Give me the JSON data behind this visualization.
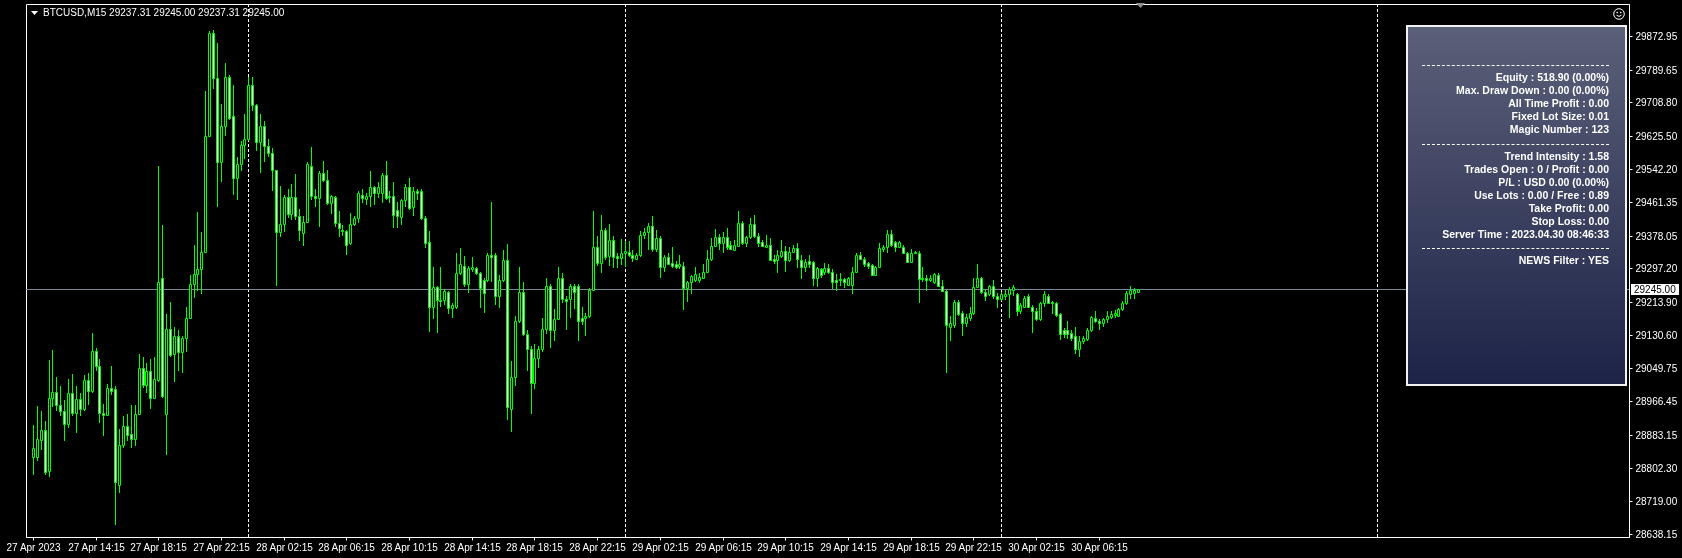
{
  "chart_data": {
    "type": "candlestick",
    "title": "BTCUSD,M15 29237.31 29245.00 29237.31 29245.00",
    "color": "#00ff00",
    "x": [
      "2023-04-27T10:15",
      "2023-04-27T10:30",
      "2023-04-27T10:45",
      "2023-04-27T11:00",
      "2023-04-27T11:15",
      "2023-04-27T11:30",
      "2023-04-27T11:45",
      "2023-04-27T12:00",
      "2023-04-27T12:15",
      "2023-04-27T12:30",
      "2023-04-27T12:45",
      "2023-04-27T13:00",
      "2023-04-27T13:15",
      "2023-04-27T13:30",
      "2023-04-27T13:45",
      "2023-04-27T14:00",
      "2023-04-27T14:15",
      "2023-04-27T14:30",
      "2023-04-27T14:45",
      "2023-04-27T15:00",
      "2023-04-27T15:15",
      "2023-04-27T15:30",
      "2023-04-27T15:45",
      "2023-04-27T16:00",
      "2023-04-27T16:15",
      "2023-04-27T16:30",
      "2023-04-27T16:45",
      "2023-04-27T17:00",
      "2023-04-27T17:15",
      "2023-04-27T17:30",
      "2023-04-27T17:45",
      "2023-04-27T18:00",
      "2023-04-27T18:15",
      "2023-04-27T18:30",
      "2023-04-27T18:45",
      "2023-04-27T19:00",
      "2023-04-27T19:15",
      "2023-04-27T19:30",
      "2023-04-27T19:45",
      "2023-04-27T20:00",
      "2023-04-27T20:15",
      "2023-04-27T20:30",
      "2023-04-27T20:45",
      "2023-04-27T21:00",
      "2023-04-27T21:15",
      "2023-04-27T21:30",
      "2023-04-27T21:45",
      "2023-04-27T22:00",
      "2023-04-27T22:15",
      "2023-04-27T22:30",
      "2023-04-27T22:45",
      "2023-04-27T23:00",
      "2023-04-27T23:15",
      "2023-04-27T23:30",
      "2023-04-27T23:45",
      "2023-04-28T00:00",
      "2023-04-28T00:15",
      "2023-04-28T00:30",
      "2023-04-28T00:45",
      "2023-04-28T01:00",
      "2023-04-28T01:15",
      "2023-04-28T01:30",
      "2023-04-28T01:45",
      "2023-04-28T02:00",
      "2023-04-28T02:15",
      "2023-04-28T02:30",
      "2023-04-28T02:45",
      "2023-04-28T03:00",
      "2023-04-28T03:15",
      "2023-04-28T03:30",
      "2023-04-28T03:45",
      "2023-04-28T04:00",
      "2023-04-28T04:15",
      "2023-04-28T04:30",
      "2023-04-28T04:45",
      "2023-04-28T05:00",
      "2023-04-28T05:15",
      "2023-04-28T05:30",
      "2023-04-28T05:45",
      "2023-04-28T06:00",
      "2023-04-28T06:15",
      "2023-04-28T06:30",
      "2023-04-28T06:45",
      "2023-04-28T07:00",
      "2023-04-28T07:15",
      "2023-04-28T07:30",
      "2023-04-28T07:45",
      "2023-04-28T08:00",
      "2023-04-28T08:15",
      "2023-04-28T08:30",
      "2023-04-28T08:45",
      "2023-04-28T09:00",
      "2023-04-28T09:15",
      "2023-04-28T09:30",
      "2023-04-28T09:45",
      "2023-04-28T10:00",
      "2023-04-28T10:15",
      "2023-04-28T10:30",
      "2023-04-28T10:45",
      "2023-04-28T11:00",
      "2023-04-28T11:15",
      "2023-04-28T11:30",
      "2023-04-28T11:45",
      "2023-04-28T12:00",
      "2023-04-28T12:15",
      "2023-04-28T12:30",
      "2023-04-28T12:45",
      "2023-04-28T13:00",
      "2023-04-28T13:15",
      "2023-04-28T13:30",
      "2023-04-28T13:45",
      "2023-04-28T14:00",
      "2023-04-28T14:15",
      "2023-04-28T14:30",
      "2023-04-28T14:45",
      "2023-04-28T15:00",
      "2023-04-28T15:15",
      "2023-04-28T15:30",
      "2023-04-28T15:45",
      "2023-04-28T16:00",
      "2023-04-28T16:15",
      "2023-04-28T16:30",
      "2023-04-28T16:45",
      "2023-04-28T17:00",
      "2023-04-28T17:15",
      "2023-04-28T17:30",
      "2023-04-28T17:45",
      "2023-04-28T18:00",
      "2023-04-28T18:15",
      "2023-04-28T18:30",
      "2023-04-28T18:45",
      "2023-04-28T19:00",
      "2023-04-28T19:15",
      "2023-04-28T19:30",
      "2023-04-28T19:45",
      "2023-04-28T20:00",
      "2023-04-28T20:15",
      "2023-04-28T20:30",
      "2023-04-28T20:45",
      "2023-04-28T21:00",
      "2023-04-28T21:15",
      "2023-04-28T21:30",
      "2023-04-28T21:45",
      "2023-04-28T22:00",
      "2023-04-28T22:15",
      "2023-04-28T22:30",
      "2023-04-28T22:45",
      "2023-04-28T23:00",
      "2023-04-28T23:15",
      "2023-04-28T23:30",
      "2023-04-28T23:45",
      "2023-04-29T00:00",
      "2023-04-29T00:15",
      "2023-04-29T00:30",
      "2023-04-29T00:45",
      "2023-04-29T01:00",
      "2023-04-29T01:15",
      "2023-04-29T01:30",
      "2023-04-29T01:45",
      "2023-04-29T02:00",
      "2023-04-29T02:15",
      "2023-04-29T02:30",
      "2023-04-29T02:45",
      "2023-04-29T03:00",
      "2023-04-29T03:15",
      "2023-04-29T03:30",
      "2023-04-29T03:45",
      "2023-04-29T04:00",
      "2023-04-29T04:15",
      "2023-04-29T04:30",
      "2023-04-29T04:45",
      "2023-04-29T05:00",
      "2023-04-29T05:15",
      "2023-04-29T05:30",
      "2023-04-29T05:45",
      "2023-04-29T06:00",
      "2023-04-29T06:15",
      "2023-04-29T06:30",
      "2023-04-29T06:45",
      "2023-04-29T07:00",
      "2023-04-29T07:15",
      "2023-04-29T07:30",
      "2023-04-29T07:45",
      "2023-04-29T08:00",
      "2023-04-29T08:15",
      "2023-04-29T08:30",
      "2023-04-29T08:45",
      "2023-04-29T09:00",
      "2023-04-29T09:15",
      "2023-04-29T09:30",
      "2023-04-29T09:45",
      "2023-04-29T10:00",
      "2023-04-29T10:15",
      "2023-04-29T10:30",
      "2023-04-29T10:45",
      "2023-04-29T11:00",
      "2023-04-29T11:15",
      "2023-04-29T11:30",
      "2023-04-29T11:45",
      "2023-04-29T12:00",
      "2023-04-29T12:15",
      "2023-04-29T12:30",
      "2023-04-29T12:45",
      "2023-04-29T13:00",
      "2023-04-29T13:15",
      "2023-04-29T13:30",
      "2023-04-29T13:45",
      "2023-04-29T14:00",
      "2023-04-29T14:15",
      "2023-04-29T14:30",
      "2023-04-29T14:45",
      "2023-04-29T15:00",
      "2023-04-29T15:15",
      "2023-04-29T15:30",
      "2023-04-29T15:45",
      "2023-04-29T16:00",
      "2023-04-29T16:15",
      "2023-04-29T16:30",
      "2023-04-29T16:45",
      "2023-04-29T17:00",
      "2023-04-29T17:15",
      "2023-04-29T17:30",
      "2023-04-29T17:45",
      "2023-04-29T18:00",
      "2023-04-29T18:15",
      "2023-04-29T18:30",
      "2023-04-29T18:45",
      "2023-04-29T19:00",
      "2023-04-29T19:15",
      "2023-04-29T19:30",
      "2023-04-29T19:45",
      "2023-04-29T20:00",
      "2023-04-29T20:15",
      "2023-04-29T20:30",
      "2023-04-29T20:45",
      "2023-04-29T21:00",
      "2023-04-29T21:15",
      "2023-04-29T21:30",
      "2023-04-29T21:45",
      "2023-04-29T22:00",
      "2023-04-29T22:15",
      "2023-04-29T22:30",
      "2023-04-29T22:45",
      "2023-04-29T23:00",
      "2023-04-29T23:15",
      "2023-04-29T23:30",
      "2023-04-29T23:45",
      "2023-04-30T00:00",
      "2023-04-30T00:15",
      "2023-04-30T00:30",
      "2023-04-30T00:45",
      "2023-04-30T01:00",
      "2023-04-30T01:15",
      "2023-04-30T01:30",
      "2023-04-30T01:45",
      "2023-04-30T02:00",
      "2023-04-30T02:15",
      "2023-04-30T02:30",
      "2023-04-30T02:45",
      "2023-04-30T03:00",
      "2023-04-30T03:15",
      "2023-04-30T03:30",
      "2023-04-30T03:45",
      "2023-04-30T04:00",
      "2023-04-30T04:15",
      "2023-04-30T04:30",
      "2023-04-30T04:45",
      "2023-04-30T05:00",
      "2023-04-30T05:15",
      "2023-04-30T05:30",
      "2023-04-30T05:45",
      "2023-04-30T06:00",
      "2023-04-30T06:15",
      "2023-04-30T06:30",
      "2023-04-30T06:45",
      "2023-04-30T07:00",
      "2023-04-30T07:15",
      "2023-04-30T07:30",
      "2023-04-30T07:45",
      "2023-04-30T08:00",
      "2023-04-30T08:15",
      "2023-04-30T08:30",
      "2023-04-30T08:45"
    ],
    "ohlc": [
      [
        28828,
        28908,
        28784,
        28850
      ],
      [
        28828,
        28954,
        28819,
        28874
      ],
      [
        28871,
        28943,
        28846,
        28895
      ],
      [
        28895,
        28917,
        28784,
        28791
      ],
      [
        28793,
        29069,
        28779,
        28976
      ],
      [
        28976,
        29094,
        28952,
        28990
      ],
      [
        28990,
        29028,
        28943,
        28957
      ],
      [
        28957,
        29006,
        28930,
        28942
      ],
      [
        28942,
        28970,
        28868,
        28910
      ],
      [
        28910,
        29023,
        28901,
        28988
      ],
      [
        28988,
        29034,
        28930,
        28939
      ],
      [
        28939,
        29006,
        28888,
        28972
      ],
      [
        28972,
        28988,
        28930,
        28948
      ],
      [
        28948,
        29032,
        28943,
        29019
      ],
      [
        29019,
        29037,
        28957,
        28992
      ],
      [
        28992,
        29137,
        28988,
        29092
      ],
      [
        29092,
        29099,
        29041,
        29054
      ],
      [
        29054,
        29072,
        28912,
        28939
      ],
      [
        28939,
        28961,
        28881,
        28933
      ],
      [
        28933,
        29010,
        28930,
        29001
      ],
      [
        29001,
        29054,
        28983,
        28992
      ],
      [
        28997,
        29006,
        28661,
        28766
      ],
      [
        28759,
        28899,
        28739,
        28859
      ],
      [
        28859,
        28930,
        28850,
        28906
      ],
      [
        28906,
        28935,
        28868,
        28883
      ],
      [
        28886,
        28957,
        28850,
        28874
      ],
      [
        28874,
        28957,
        28857,
        28936
      ],
      [
        28936,
        29085,
        28934,
        29050
      ],
      [
        29050,
        29076,
        29001,
        29007
      ],
      [
        29007,
        29063,
        28988,
        29043
      ],
      [
        29043,
        29072,
        28948,
        28974
      ],
      [
        28974,
        29076,
        28972,
        29021
      ],
      [
        29019,
        29551,
        29014,
        29263
      ],
      [
        29272,
        29405,
        28974,
        28979
      ],
      [
        28935,
        29183,
        28833,
        29147
      ],
      [
        29147,
        29214,
        29076,
        29081
      ],
      [
        29085,
        29152,
        29014,
        29130
      ],
      [
        29130,
        29143,
        29041,
        29090
      ],
      [
        29090,
        29130,
        29037,
        29125
      ],
      [
        29125,
        29201,
        29090,
        29174
      ],
      [
        29174,
        29280,
        29170,
        29258
      ],
      [
        29258,
        29356,
        29223,
        29282
      ],
      [
        29282,
        29436,
        29241,
        29294
      ],
      [
        29294,
        29387,
        29232,
        29338
      ],
      [
        29338,
        29737,
        29336,
        29626
      ],
      [
        29626,
        29885,
        29624,
        29882
      ],
      [
        29882,
        29888,
        29743,
        29770
      ],
      [
        29770,
        29857,
        29449,
        29560
      ],
      [
        29560,
        29706,
        29511,
        29649
      ],
      [
        29649,
        29806,
        29626,
        29773
      ],
      [
        29773,
        29777,
        29666,
        29671
      ],
      [
        29675,
        29751,
        29480,
        29522
      ],
      [
        29522,
        29573,
        29467,
        29555
      ],
      [
        29555,
        29613,
        29538,
        29604
      ],
      [
        29604,
        29680,
        29569,
        29618
      ],
      [
        29618,
        29773,
        29613,
        29751
      ],
      [
        29751,
        29773,
        29688,
        29702
      ],
      [
        29702,
        29706,
        29587,
        29611
      ],
      [
        29611,
        29680,
        29533,
        29649
      ],
      [
        29649,
        29662,
        29560,
        29600
      ],
      [
        29600,
        29618,
        29573,
        29582
      ],
      [
        29582,
        29595,
        29489,
        29540
      ],
      [
        29540,
        29542,
        29254,
        29387
      ],
      [
        29387,
        29502,
        29374,
        29407
      ],
      [
        29407,
        29480,
        29387,
        29473
      ],
      [
        29473,
        29493,
        29422,
        29431
      ],
      [
        29431,
        29507,
        29418,
        29473
      ],
      [
        29473,
        29532,
        29418,
        29427
      ],
      [
        29427,
        29445,
        29365,
        29391
      ],
      [
        29385,
        29427,
        29352,
        29412
      ],
      [
        29412,
        29560,
        29409,
        29556
      ],
      [
        29551,
        29597,
        29467,
        29476
      ],
      [
        29477,
        29493,
        29449,
        29471
      ],
      [
        29471,
        29538,
        29400,
        29533
      ],
      [
        29533,
        29564,
        29511,
        29516
      ],
      [
        29516,
        29540,
        29453,
        29458
      ],
      [
        29458,
        29480,
        29431,
        29476
      ],
      [
        29474,
        29476,
        29400,
        29409
      ],
      [
        29409,
        29440,
        29374,
        29396
      ],
      [
        29393,
        29405,
        29378,
        29389
      ],
      [
        29389,
        29391,
        29329,
        29356
      ],
      [
        29360,
        29433,
        29356,
        29407
      ],
      [
        29407,
        29427,
        29403,
        29421
      ],
      [
        29421,
        29489,
        29409,
        29483
      ],
      [
        29480,
        29493,
        29458,
        29471
      ],
      [
        29469,
        29485,
        29454,
        29477
      ],
      [
        29477,
        29538,
        29449,
        29500
      ],
      [
        29500,
        29502,
        29454,
        29485
      ],
      [
        29485,
        29511,
        29471,
        29498
      ],
      [
        29485,
        29533,
        29458,
        29529
      ],
      [
        29529,
        29564,
        29467,
        29471
      ],
      [
        29477,
        29489,
        29458,
        29474
      ],
      [
        29476,
        29511,
        29398,
        29429
      ],
      [
        29442,
        29462,
        29396,
        29427
      ],
      [
        29424,
        29469,
        29405,
        29467
      ],
      [
        29467,
        29507,
        29449,
        29498
      ],
      [
        29498,
        29522,
        29442,
        29446
      ],
      [
        29449,
        29498,
        29427,
        29489
      ],
      [
        29489,
        29493,
        29467,
        29485
      ],
      [
        29489,
        29493,
        29418,
        29422
      ],
      [
        29422,
        29427,
        29347,
        29360
      ],
      [
        29362,
        29389,
        29139,
        29202
      ],
      [
        29202,
        29300,
        29170,
        29250
      ],
      [
        29250,
        29254,
        29137,
        29218
      ],
      [
        29218,
        29300,
        29201,
        29216
      ],
      [
        29218,
        29245,
        29205,
        29241
      ],
      [
        29238,
        29241,
        29183,
        29199
      ],
      [
        29199,
        29211,
        29174,
        29205
      ],
      [
        29201,
        29334,
        29196,
        29285
      ],
      [
        29285,
        29347,
        29281,
        29307
      ],
      [
        29303,
        29327,
        29250,
        29258
      ],
      [
        29258,
        29303,
        29236,
        29298
      ],
      [
        29294,
        29325,
        29289,
        29300
      ],
      [
        29298,
        29300,
        29281,
        29285
      ],
      [
        29285,
        29289,
        29199,
        29247
      ],
      [
        29267,
        29272,
        29185,
        29236
      ],
      [
        29267,
        29334,
        29263,
        29329
      ],
      [
        29329,
        29462,
        29263,
        29325
      ],
      [
        29329,
        29334,
        29205,
        29227
      ],
      [
        29227,
        29281,
        29199,
        29267
      ],
      [
        29267,
        29343,
        29263,
        29318
      ],
      [
        29318,
        29358,
        28921,
        28952
      ],
      [
        28948,
        29068,
        28890,
        29028
      ],
      [
        29028,
        29179,
        29006,
        29165
      ],
      [
        29165,
        29300,
        29161,
        29238
      ],
      [
        29238,
        29263,
        29130,
        29134
      ],
      [
        29134,
        29143,
        29041,
        29096
      ],
      [
        29096,
        29103,
        28936,
        29013
      ],
      [
        29013,
        29108,
        28997,
        29074
      ],
      [
        29074,
        29103,
        29050,
        29096
      ],
      [
        29096,
        29174,
        29090,
        29146
      ],
      [
        29146,
        29273,
        29134,
        29254
      ],
      [
        29254,
        29258,
        29099,
        29143
      ],
      [
        29143,
        29196,
        29116,
        29172
      ],
      [
        29172,
        29300,
        29170,
        29272
      ],
      [
        29272,
        29285,
        29211,
        29220
      ],
      [
        29220,
        29227,
        29143,
        29217
      ],
      [
        29220,
        29258,
        29174,
        29254
      ],
      [
        29252,
        29258,
        29196,
        29238
      ],
      [
        29252,
        29258,
        29116,
        29165
      ],
      [
        29174,
        29202,
        29156,
        29165
      ],
      [
        29174,
        29187,
        29128,
        29179
      ],
      [
        29179,
        29247,
        29174,
        29243
      ],
      [
        29243,
        29438,
        29241,
        29350
      ],
      [
        29350,
        29378,
        29303,
        29309
      ],
      [
        29309,
        29430,
        29285,
        29391
      ],
      [
        29391,
        29396,
        29318,
        29325
      ],
      [
        29327,
        29407,
        29303,
        29367
      ],
      [
        29367,
        29378,
        29297,
        29325
      ],
      [
        29327,
        29336,
        29297,
        29323
      ],
      [
        29323,
        29369,
        29305,
        29336
      ],
      [
        29336,
        29365,
        29300,
        29340
      ],
      [
        29338,
        29365,
        29325,
        29329
      ],
      [
        29329,
        29343,
        29312,
        29323
      ],
      [
        29320,
        29334,
        29318,
        29329
      ],
      [
        29329,
        29389,
        29325,
        29380
      ],
      [
        29380,
        29396,
        29369,
        29387
      ],
      [
        29387,
        29409,
        29343,
        29403
      ],
      [
        29403,
        29427,
        29338,
        29344
      ],
      [
        29344,
        29391,
        29338,
        29371
      ],
      [
        29371,
        29376,
        29273,
        29300
      ],
      [
        29300,
        29329,
        29289,
        29325
      ],
      [
        29325,
        29334,
        29305,
        29307
      ],
      [
        29309,
        29350,
        29297,
        29303
      ],
      [
        29307,
        29316,
        29294,
        29300
      ],
      [
        29303,
        29329,
        29294,
        29307
      ],
      [
        29303,
        29312,
        29194,
        29247
      ],
      [
        29247,
        29265,
        29214,
        29263
      ],
      [
        29263,
        29281,
        29234,
        29279
      ],
      [
        29267,
        29300,
        29263,
        29282
      ],
      [
        29267,
        29285,
        29261,
        29276
      ],
      [
        29272,
        29307,
        29270,
        29289
      ],
      [
        29289,
        29343,
        29285,
        29320
      ],
      [
        29320,
        29371,
        29316,
        29353
      ],
      [
        29353,
        29395,
        29350,
        29375
      ],
      [
        29374,
        29382,
        29343,
        29360
      ],
      [
        29360,
        29387,
        29335,
        29374
      ],
      [
        29374,
        29396,
        29343,
        29351
      ],
      [
        29356,
        29365,
        29343,
        29344
      ],
      [
        29343,
        29367,
        29341,
        29356
      ],
      [
        29353,
        29440,
        29351,
        29409
      ],
      [
        29409,
        29414,
        29356,
        29359
      ],
      [
        29360,
        29378,
        29351,
        29374
      ],
      [
        29374,
        29421,
        29369,
        29406
      ],
      [
        29406,
        29430,
        29371,
        29376
      ],
      [
        29378,
        29385,
        29350,
        29360
      ],
      [
        29362,
        29367,
        29350,
        29353
      ],
      [
        29351,
        29380,
        29350,
        29356
      ],
      [
        29356,
        29371,
        29314,
        29318
      ],
      [
        29320,
        29329,
        29307,
        29314
      ],
      [
        29318,
        29343,
        29285,
        29329
      ],
      [
        29327,
        29367,
        29323,
        29340
      ],
      [
        29340,
        29353,
        29289,
        29318
      ],
      [
        29318,
        29351,
        29312,
        29338
      ],
      [
        29338,
        29355,
        29334,
        29347
      ],
      [
        29347,
        29359,
        29298,
        29320
      ],
      [
        29318,
        29329,
        29270,
        29300
      ],
      [
        29300,
        29320,
        29289,
        29313
      ],
      [
        29314,
        29329,
        29298,
        29307
      ],
      [
        29313,
        29316,
        29254,
        29273
      ],
      [
        29272,
        29300,
        29250,
        29297
      ],
      [
        29294,
        29297,
        29272,
        29281
      ],
      [
        29288,
        29309,
        29281,
        29298
      ],
      [
        29298,
        29307,
        29282,
        29288
      ],
      [
        29288,
        29294,
        29245,
        29263
      ],
      [
        29269,
        29282,
        29241,
        29263
      ],
      [
        29270,
        29285,
        29254,
        29267
      ],
      [
        29270,
        29272,
        29247,
        29263
      ],
      [
        29256,
        29276,
        29254,
        29272
      ],
      [
        29256,
        29300,
        29232,
        29288
      ],
      [
        29288,
        29334,
        29285,
        29329
      ],
      [
        29329,
        29338,
        29318,
        29320
      ],
      [
        29320,
        29325,
        29300,
        29307
      ],
      [
        29309,
        29312,
        29294,
        29303
      ],
      [
        29305,
        29307,
        29279,
        29281
      ],
      [
        29281,
        29303,
        29279,
        29300
      ],
      [
        29300,
        29360,
        29298,
        29347
      ],
      [
        29344,
        29356,
        29338,
        29351
      ],
      [
        29351,
        29391,
        29335,
        29382
      ],
      [
        29382,
        29391,
        29351,
        29356
      ],
      [
        29362,
        29365,
        29338,
        29351
      ],
      [
        29351,
        29365,
        29347,
        29362
      ],
      [
        29351,
        29356,
        29332,
        29334
      ],
      [
        29336,
        29338,
        29309,
        29312
      ],
      [
        29312,
        29344,
        29309,
        29336
      ],
      [
        29334,
        29341,
        29332,
        29338
      ],
      [
        29336,
        29341,
        29210,
        29270
      ],
      [
        29273,
        29300,
        29263,
        29270
      ],
      [
        29272,
        29281,
        29241,
        29267
      ],
      [
        29268,
        29281,
        29263,
        29273
      ],
      [
        29263,
        29285,
        29258,
        29282
      ],
      [
        29281,
        29285,
        29250,
        29254
      ],
      [
        29254,
        29267,
        29238,
        29241
      ],
      [
        29241,
        29243,
        29037,
        29155
      ],
      [
        29152,
        29179,
        29116,
        29161
      ],
      [
        29155,
        29218,
        29149,
        29214
      ],
      [
        29214,
        29218,
        29179,
        29183
      ],
      [
        29187,
        29192,
        29128,
        29161
      ],
      [
        29161,
        29183,
        29152,
        29176
      ],
      [
        29174,
        29201,
        29167,
        29185
      ],
      [
        29185,
        29273,
        29181,
        29250
      ],
      [
        29250,
        29307,
        29247,
        29272
      ],
      [
        29272,
        29276,
        29234,
        29238
      ],
      [
        29238,
        29245,
        29217,
        29229
      ],
      [
        29234,
        29256,
        29227,
        29252
      ],
      [
        29252,
        29267,
        29220,
        29227
      ],
      [
        29229,
        29236,
        29199,
        29220
      ],
      [
        29220,
        29238,
        29217,
        29232
      ],
      [
        29227,
        29243,
        29218,
        29234
      ],
      [
        29232,
        29250,
        29174,
        29245
      ],
      [
        29243,
        29256,
        29227,
        29250
      ],
      [
        29232,
        29236,
        29179,
        29192
      ],
      [
        29192,
        29210,
        29183,
        29205
      ],
      [
        29202,
        29229,
        29199,
        29223
      ],
      [
        29227,
        29232,
        29199,
        29201
      ],
      [
        29202,
        29205,
        29137,
        29190
      ],
      [
        29190,
        29199,
        29167,
        29172
      ],
      [
        29172,
        29214,
        29165,
        29210
      ],
      [
        29210,
        29241,
        29202,
        29232
      ],
      [
        29229,
        29232,
        29210,
        29211
      ],
      [
        29214,
        29217,
        29183,
        29211
      ],
      [
        29211,
        29214,
        29176,
        29181
      ],
      [
        29183,
        29187,
        29119,
        29134
      ],
      [
        29143,
        29148,
        29125,
        29134
      ],
      [
        29143,
        29167,
        29121,
        29134
      ],
      [
        29137,
        29143,
        29116,
        29125
      ],
      [
        29130,
        29152,
        29084,
        29096
      ],
      [
        29096,
        29130,
        29077,
        29116
      ],
      [
        29116,
        29130,
        29110,
        29123
      ],
      [
        29121,
        29149,
        29116,
        29143
      ],
      [
        29143,
        29179,
        29140,
        29176
      ],
      [
        29174,
        29192,
        29161,
        29165
      ],
      [
        29167,
        29170,
        29143,
        29161
      ],
      [
        29161,
        29174,
        29152,
        29170
      ],
      [
        29170,
        29192,
        29161,
        29179
      ],
      [
        29176,
        29190,
        29170,
        29183
      ],
      [
        29181,
        29194,
        29174,
        29185
      ],
      [
        29179,
        29199,
        29176,
        29196
      ],
      [
        29196,
        29217,
        29192,
        29211
      ],
      [
        29211,
        29241,
        29205,
        29236
      ],
      [
        29234,
        29252,
        29220,
        29243
      ],
      [
        29236,
        29247,
        29220,
        29243
      ],
      [
        29237.31,
        29245,
        29237.31,
        29245
      ]
    ],
    "colors": [
      "#000000",
      "#000000",
      "#000000",
      "#ffffff",
      "#000000",
      "#000000",
      "#ffffff",
      "#ffffff",
      "#ffffff",
      "#000000",
      "#ffffff",
      "#000000",
      "#ffffff",
      "#000000",
      "#ffffff",
      "#000000",
      "#ffffff",
      "#ffffff",
      "#ffffff",
      "#000000",
      "#ffffff",
      "#ffffff",
      "#000000",
      "#000000",
      "#ffffff",
      "#ffffff",
      "#000000",
      "#000000",
      "#ffffff",
      "#000000",
      "#ffffff",
      "#000000",
      "#000000",
      "#ffffff",
      "#000000",
      "#ffffff",
      "#000000",
      "#ffffff",
      "#000000",
      "#000000",
      "#000000",
      "#000000",
      "#000000",
      "#000000",
      "#000000",
      "#000000",
      "#ffffff",
      "#ffffff",
      "#000000",
      "#000000",
      "#ffffff",
      "#ffffff",
      "#000000",
      "#000000",
      "#000000",
      "#000000",
      "#ffffff",
      "#ffffff",
      "#000000",
      "#ffffff",
      "#ffffff",
      "#ffffff",
      "#ffffff",
      "#000000",
      "#000000",
      "#ffffff",
      "#000000",
      "#ffffff",
      "#ffffff",
      "#000000",
      "#000000",
      "#ffffff",
      "#ffffff",
      "#000000",
      "#ffffff",
      "#ffffff",
      "#000000",
      "#ffffff",
      "#ffffff",
      "#ffffff",
      "#ffffff",
      "#000000",
      "#000000",
      "#000000",
      "#ffffff",
      "#000000",
      "#000000",
      "#ffffff",
      "#000000",
      "#000000",
      "#ffffff",
      "#ffffff",
      "#ffffff",
      "#ffffff",
      "#000000",
      "#000000",
      "#ffffff",
      "#000000",
      "#ffffff",
      "#ffffff",
      "#ffffff",
      "#ffffff",
      "#000000",
      "#ffffff",
      "#ffffff",
      "#000000",
      "#ffffff",
      "#000000",
      "#000000",
      "#000000",
      "#ffffff",
      "#000000",
      "#000000",
      "#ffffff",
      "#ffffff",
      "#ffffff",
      "#000000",
      "#ffffff",
      "#ffffff",
      "#000000",
      "#000000",
      "#ffffff",
      "#000000",
      "#000000",
      "#000000",
      "#ffffff",
      "#ffffff",
      "#ffffff",
      "#000000",
      "#000000",
      "#000000",
      "#000000",
      "#ffffff",
      "#000000",
      "#000000",
      "#ffffff",
      "#ffffff",
      "#000000",
      "#ffffff",
      "#ffffff",
      "#ffffff",
      "#000000",
      "#000000",
      "#000000",
      "#ffffff",
      "#000000",
      "#ffffff",
      "#000000",
      "#ffffff",
      "#ffffff",
      "#000000",
      "#000000",
      "#ffffff",
      "#ffffff",
      "#000000",
      "#000000",
      "#000000",
      "#000000",
      "#ffffff",
      "#000000",
      "#ffffff",
      "#000000",
      "#ffffff",
      "#ffffff",
      "#ffffff",
      "#000000",
      "#ffffff",
      "#000000",
      "#000000",
      "#000000",
      "#000000",
      "#000000",
      "#000000",
      "#000000",
      "#000000",
      "#ffffff",
      "#000000",
      "#ffffff",
      "#ffffff",
      "#000000",
      "#000000",
      "#ffffff",
      "#000000",
      "#000000",
      "#ffffff",
      "#ffffff",
      "#ffffff",
      "#000000",
      "#ffffff",
      "#ffffff",
      "#000000",
      "#000000",
      "#ffffff",
      "#000000",
      "#000000",
      "#ffffff",
      "#ffffff",
      "#000000",
      "#ffffff",
      "#ffffff",
      "#000000",
      "#ffffff",
      "#000000",
      "#ffffff",
      "#ffffff",
      "#ffffff",
      "#ffffff",
      "#ffffff",
      "#000000",
      "#000000",
      "#000000",
      "#ffffff",
      "#ffffff",
      "#ffffff",
      "#ffffff",
      "#000000",
      "#000000",
      "#000000",
      "#000000",
      "#ffffff",
      "#ffffff",
      "#000000",
      "#ffffff",
      "#ffffff",
      "#000000",
      "#000000",
      "#ffffff",
      "#ffffff",
      "#ffffff",
      "#000000",
      "#000000",
      "#ffffff",
      "#ffffff",
      "#ffffff",
      "#000000",
      "#000000",
      "#ffffff",
      "#ffffff",
      "#000000",
      "#000000",
      "#000000",
      "#000000",
      "#ffffff",
      "#ffffff",
      "#000000",
      "#ffffff",
      "#ffffff",
      "#000000",
      "#000000",
      "#000000",
      "#000000",
      "#ffffff",
      "#000000",
      "#000000",
      "#ffffff",
      "#ffffff",
      "#ffffff",
      "#000000",
      "#000000",
      "#ffffff",
      "#ffffff",
      "#ffffff",
      "#ffffff",
      "#ffffff",
      "#ffffff",
      "#ffffff",
      "#ffffff",
      "#000000",
      "#000000",
      "#000000",
      "#000000",
      "#ffffff",
      "#ffffff",
      "#000000",
      "#000000",
      "#000000",
      "#000000",
      "#000000",
      "#000000",
      "#000000",
      "#000000",
      "#000000",
      "#000000"
    ],
    "xlim": [
      "2023-04-27T10:08",
      "2023-05-01T15:45"
    ],
    "xticks": [
      {
        "value": "2023-04-27T10:15",
        "label": "27 Apr 2023"
      },
      {
        "value": "2023-04-27T14:15",
        "label": "27 Apr 14:15"
      },
      {
        "value": "2023-04-27T18:15",
        "label": "27 Apr 18:15"
      },
      {
        "value": "2023-04-27T22:15",
        "label": "27 Apr 22:15"
      },
      {
        "value": "2023-04-28T02:15",
        "label": "28 Apr 02:15"
      },
      {
        "value": "2023-04-28T06:15",
        "label": "28 Apr 06:15"
      },
      {
        "value": "2023-04-28T10:15",
        "label": "28 Apr 10:15"
      },
      {
        "value": "2023-04-28T14:15",
        "label": "28 Apr 14:15"
      },
      {
        "value": "2023-04-28T18:15",
        "label": "28 Apr 18:15"
      },
      {
        "value": "2023-04-28T22:15",
        "label": "28 Apr 22:15"
      },
      {
        "value": "2023-04-29T02:15",
        "label": "29 Apr 02:15"
      },
      {
        "value": "2023-04-29T06:15",
        "label": "29 Apr 06:15"
      },
      {
        "value": "2023-04-29T10:15",
        "label": "29 Apr 10:15"
      },
      {
        "value": "2023-04-29T14:15",
        "label": "29 Apr 14:15"
      },
      {
        "value": "2023-04-29T18:15",
        "label": "29 Apr 18:15"
      },
      {
        "value": "2023-04-29T22:15",
        "label": "29 Apr 22:15"
      },
      {
        "value": "2023-04-30T02:15",
        "label": "30 Apr 02:15"
      },
      {
        "value": "2023-04-30T06:15",
        "label": "30 Apr 06:15"
      }
    ],
    "ylim": [
      28630,
      29953
    ],
    "yticks": [
      28638.15,
      {
        "value": 28719,
        "label": "28719.00"
      },
      {
        "value": 28802.3,
        "label": "28802.30"
      },
      28883.15,
      28966.45,
      29049.75,
      {
        "value": 29130.6,
        "label": "29130.60"
      },
      {
        "value": 29213.9,
        "label": "29213.90"
      },
      {
        "value": 29297.2,
        "label": "29297.20"
      },
      29378.05,
      29461.35,
      {
        "value": 29542.2,
        "label": "29542.20"
      },
      {
        "value": 29625.5,
        "label": "29625.50"
      },
      {
        "value": 29708.8,
        "label": "29708.80"
      },
      29789.65,
      29872.95
    ],
    "ref_lines": [
      {
        "axis": "x",
        "value": "2023-04-28T00:00",
        "color": "#ffffff",
        "line_style": "dashed"
      },
      {
        "axis": "x",
        "value": "2023-04-29T00:00",
        "color": "#ffffff",
        "line_style": "dashed"
      },
      {
        "axis": "x",
        "value": "2023-04-30T00:00",
        "color": "#ffffff",
        "line_style": "dashed"
      },
      {
        "axis": "x",
        "value": "2023-05-01T00:00",
        "color": "#ffffff",
        "line_style": "dashed"
      },
      {
        "axis": "y",
        "value": 29245,
        "label": "29245.00",
        "color": "#778899",
        "line_style": "solid"
      }
    ],
    "annotations": [
      "Equity : 518.90 (0.00%)",
      "Max. Draw Down : 0.00 (0.00%)",
      "All Time Profit : 0.00",
      "Fixed Lot Size: 0.01",
      "Magic Number : 123",
      "Trend Intensity : 1.58",
      "Trades Open : 0 / Profit : 0.00",
      "P/L : USD 0.00 (0.00%)",
      "Use Lots : 0.00 / Free : 0.89",
      "Take Profit: 0.00",
      "Stop Loss: 0.00",
      "Server Time : 2023.04.30 08:46:33",
      "NEWS Filter : YES"
    ]
  }
}
